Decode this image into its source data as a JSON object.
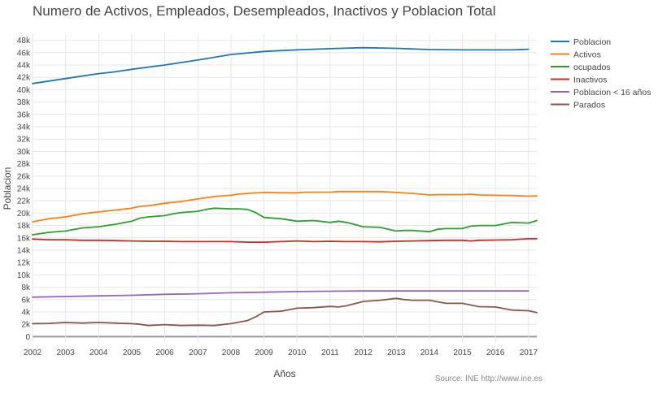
{
  "chart_data": {
    "type": "line",
    "title": "Numero de Activos, Empleados, Desempleados, Inactivos y Poblacion Total",
    "xlabel": "Años",
    "ylabel": "Poblacion",
    "source": "Source: INE http://www.ine.es",
    "xlim": [
      2002,
      2017.25
    ],
    "ylim": [
      -1000,
      49000
    ],
    "x_ticks": [
      2002,
      2003,
      2004,
      2005,
      2006,
      2007,
      2008,
      2009,
      2010,
      2011,
      2012,
      2013,
      2014,
      2015,
      2016,
      2017
    ],
    "y_ticks": [
      0,
      2000,
      4000,
      6000,
      8000,
      10000,
      12000,
      14000,
      16000,
      18000,
      20000,
      22000,
      24000,
      26000,
      28000,
      30000,
      32000,
      34000,
      36000,
      38000,
      40000,
      42000,
      44000,
      46000,
      48000
    ],
    "y_tick_labels": [
      "0",
      "2k",
      "4k",
      "6k",
      "8k",
      "10k",
      "12k",
      "14k",
      "16k",
      "18k",
      "20k",
      "22k",
      "24k",
      "26k",
      "28k",
      "30k",
      "32k",
      "34k",
      "36k",
      "38k",
      "40k",
      "42k",
      "44k",
      "46k",
      "48k"
    ],
    "grid": true,
    "legend_position": "right",
    "series": [
      {
        "name": "Poblacion",
        "color": "#1f77b4",
        "points": [
          [
            2002,
            41000
          ],
          [
            2003,
            41800
          ],
          [
            2004,
            42600
          ],
          [
            2004.5,
            42900
          ],
          [
            2005,
            43300
          ],
          [
            2006,
            44000
          ],
          [
            2007,
            44800
          ],
          [
            2008,
            45700
          ],
          [
            2009,
            46200
          ],
          [
            2010,
            46450
          ],
          [
            2011,
            46650
          ],
          [
            2012,
            46800
          ],
          [
            2013,
            46700
          ],
          [
            2014,
            46500
          ],
          [
            2015,
            46450
          ],
          [
            2016,
            46450
          ],
          [
            2016.5,
            46450
          ],
          [
            2017,
            46550
          ]
        ]
      },
      {
        "name": "Activos",
        "color": "#ff7f0e",
        "points": [
          [
            2002,
            18600
          ],
          [
            2002.5,
            19100
          ],
          [
            2003,
            19400
          ],
          [
            2003.5,
            19900
          ],
          [
            2004,
            20200
          ],
          [
            2004.5,
            20500
          ],
          [
            2005,
            20800
          ],
          [
            2005.25,
            21100
          ],
          [
            2005.5,
            21200
          ],
          [
            2006,
            21600
          ],
          [
            2006.5,
            21900
          ],
          [
            2007,
            22300
          ],
          [
            2007.5,
            22700
          ],
          [
            2008,
            22900
          ],
          [
            2008.25,
            23100
          ],
          [
            2008.5,
            23200
          ],
          [
            2009,
            23350
          ],
          [
            2009.5,
            23300
          ],
          [
            2010,
            23300
          ],
          [
            2010.25,
            23400
          ],
          [
            2011,
            23400
          ],
          [
            2011.25,
            23500
          ],
          [
            2012,
            23500
          ],
          [
            2012.5,
            23500
          ],
          [
            2013,
            23350
          ],
          [
            2013.5,
            23200
          ],
          [
            2014,
            22950
          ],
          [
            2014.25,
            23000
          ],
          [
            2014.75,
            23000
          ],
          [
            2015,
            23000
          ],
          [
            2015.25,
            23050
          ],
          [
            2015.5,
            22950
          ],
          [
            2016,
            22900
          ],
          [
            2016.5,
            22850
          ],
          [
            2017,
            22750
          ],
          [
            2017.25,
            22800
          ]
        ]
      },
      {
        "name": "ocupados",
        "color": "#2ca02c",
        "points": [
          [
            2002,
            16500
          ],
          [
            2002.5,
            16900
          ],
          [
            2003,
            17100
          ],
          [
            2003.5,
            17600
          ],
          [
            2004,
            17800
          ],
          [
            2004.5,
            18200
          ],
          [
            2005,
            18700
          ],
          [
            2005.25,
            19200
          ],
          [
            2005.5,
            19400
          ],
          [
            2006,
            19600
          ],
          [
            2006.25,
            19900
          ],
          [
            2006.5,
            20100
          ],
          [
            2007,
            20300
          ],
          [
            2007.25,
            20600
          ],
          [
            2007.5,
            20800
          ],
          [
            2008,
            20700
          ],
          [
            2008.25,
            20700
          ],
          [
            2008.5,
            20600
          ],
          [
            2008.75,
            20100
          ],
          [
            2009,
            19300
          ],
          [
            2009.5,
            19100
          ],
          [
            2010,
            18700
          ],
          [
            2010.5,
            18800
          ],
          [
            2011,
            18500
          ],
          [
            2011.25,
            18700
          ],
          [
            2011.5,
            18500
          ],
          [
            2012,
            17800
          ],
          [
            2012.5,
            17700
          ],
          [
            2013,
            17100
          ],
          [
            2013.25,
            17200
          ],
          [
            2013.5,
            17200
          ],
          [
            2014,
            17000
          ],
          [
            2014.25,
            17400
          ],
          [
            2014.5,
            17500
          ],
          [
            2015,
            17500
          ],
          [
            2015.25,
            17900
          ],
          [
            2015.5,
            18000
          ],
          [
            2016,
            18000
          ],
          [
            2016.5,
            18500
          ],
          [
            2017,
            18400
          ],
          [
            2017.25,
            18800
          ]
        ]
      },
      {
        "name": "Inactivos",
        "color": "#d62728",
        "points": [
          [
            2002,
            15800
          ],
          [
            2002.5,
            15700
          ],
          [
            2003,
            15700
          ],
          [
            2003.5,
            15600
          ],
          [
            2004,
            15600
          ],
          [
            2004.5,
            15550
          ],
          [
            2005,
            15500
          ],
          [
            2005.5,
            15450
          ],
          [
            2006,
            15450
          ],
          [
            2006.5,
            15400
          ],
          [
            2007,
            15400
          ],
          [
            2007.5,
            15400
          ],
          [
            2008,
            15400
          ],
          [
            2008.5,
            15300
          ],
          [
            2009,
            15300
          ],
          [
            2009.5,
            15400
          ],
          [
            2010,
            15500
          ],
          [
            2010.5,
            15400
          ],
          [
            2011,
            15450
          ],
          [
            2011.5,
            15400
          ],
          [
            2012,
            15400
          ],
          [
            2012.5,
            15350
          ],
          [
            2013,
            15450
          ],
          [
            2013.5,
            15500
          ],
          [
            2014,
            15550
          ],
          [
            2014.5,
            15600
          ],
          [
            2015,
            15600
          ],
          [
            2015.25,
            15500
          ],
          [
            2015.5,
            15600
          ],
          [
            2016,
            15650
          ],
          [
            2016.5,
            15700
          ],
          [
            2017,
            15850
          ],
          [
            2017.25,
            15850
          ]
        ]
      },
      {
        "name": "Poblacion < 16 años",
        "color": "#9467bd",
        "points": [
          [
            2002,
            6400
          ],
          [
            2003,
            6500
          ],
          [
            2004,
            6600
          ],
          [
            2005,
            6700
          ],
          [
            2006,
            6850
          ],
          [
            2007,
            6950
          ],
          [
            2008,
            7100
          ],
          [
            2009,
            7200
          ],
          [
            2010,
            7300
          ],
          [
            2011,
            7350
          ],
          [
            2012,
            7400
          ],
          [
            2013,
            7400
          ],
          [
            2014,
            7400
          ],
          [
            2015,
            7400
          ],
          [
            2016,
            7400
          ],
          [
            2016.5,
            7400
          ],
          [
            2017,
            7400
          ]
        ]
      },
      {
        "name": "Parados",
        "color": "#8c564b",
        "points": [
          [
            2002,
            2100
          ],
          [
            2002.5,
            2150
          ],
          [
            2003,
            2300
          ],
          [
            2003.5,
            2200
          ],
          [
            2004,
            2300
          ],
          [
            2004.5,
            2200
          ],
          [
            2005,
            2100
          ],
          [
            2005.25,
            2000
          ],
          [
            2005.5,
            1800
          ],
          [
            2006,
            1950
          ],
          [
            2006.5,
            1800
          ],
          [
            2007,
            1850
          ],
          [
            2007.5,
            1800
          ],
          [
            2008,
            2100
          ],
          [
            2008.5,
            2600
          ],
          [
            2008.75,
            3200
          ],
          [
            2009,
            4000
          ],
          [
            2009.5,
            4100
          ],
          [
            2010,
            4600
          ],
          [
            2010.5,
            4700
          ],
          [
            2011,
            4900
          ],
          [
            2011.25,
            4800
          ],
          [
            2011.5,
            5000
          ],
          [
            2012,
            5700
          ],
          [
            2012.5,
            5900
          ],
          [
            2013,
            6200
          ],
          [
            2013.25,
            6000
          ],
          [
            2013.5,
            5900
          ],
          [
            2014,
            5900
          ],
          [
            2014.5,
            5400
          ],
          [
            2015,
            5400
          ],
          [
            2015.5,
            4850
          ],
          [
            2016,
            4800
          ],
          [
            2016.5,
            4300
          ],
          [
            2017,
            4200
          ],
          [
            2017.25,
            3900
          ]
        ]
      }
    ]
  }
}
